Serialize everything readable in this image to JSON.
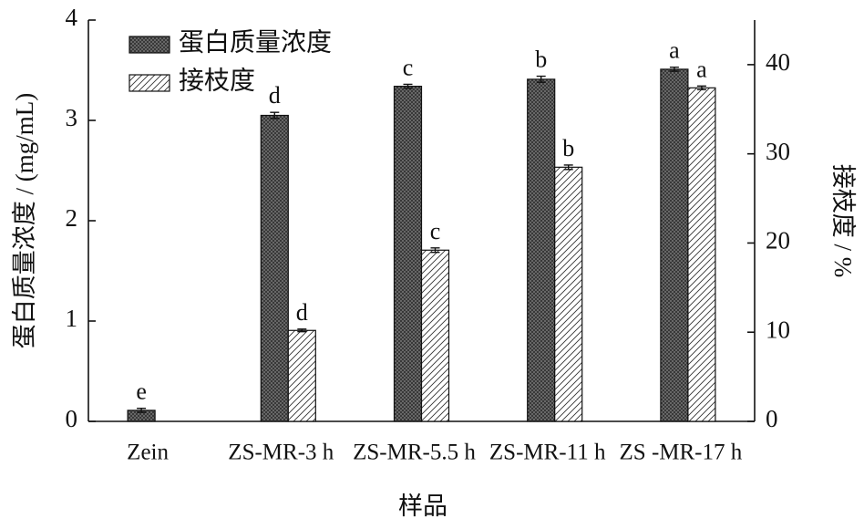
{
  "chart_data": {
    "type": "bar",
    "x_label": "样品",
    "y_label": "蛋白质量浓度 / (mg/mL)",
    "y2_label": "接枝度 / %",
    "categories": [
      "Zein",
      "ZS-MR-3 h",
      "ZS-MR-5.5 h",
      "ZS-MR-11 h",
      "ZS -MR-17 h"
    ],
    "series": [
      {
        "name": "蛋白质量浓度",
        "color": "#5a5a5a",
        "hatch": "xx",
        "axis": "y",
        "values": [
          0.11,
          3.05,
          3.34,
          3.41,
          3.51
        ],
        "errors": [
          0.02,
          0.03,
          0.02,
          0.03,
          0.02
        ],
        "letters": [
          "e",
          "d",
          "c",
          "b",
          "a"
        ]
      },
      {
        "name": "接枝度",
        "color": "#ffffff",
        "hatch": "//",
        "axis": "y2",
        "values": [
          null,
          10.2,
          19.2,
          28.5,
          37.4
        ],
        "errors": [
          null,
          0.15,
          0.25,
          0.25,
          0.2
        ],
        "letters": [
          null,
          "d",
          "c",
          "b",
          "a"
        ]
      }
    ],
    "ylim": [
      0,
      4
    ],
    "yticks": [
      0,
      1,
      2,
      3,
      4
    ],
    "y2lim": [
      0,
      45
    ],
    "y2ticks": [
      0,
      10,
      20,
      30,
      40
    ],
    "legend": "upper left"
  }
}
